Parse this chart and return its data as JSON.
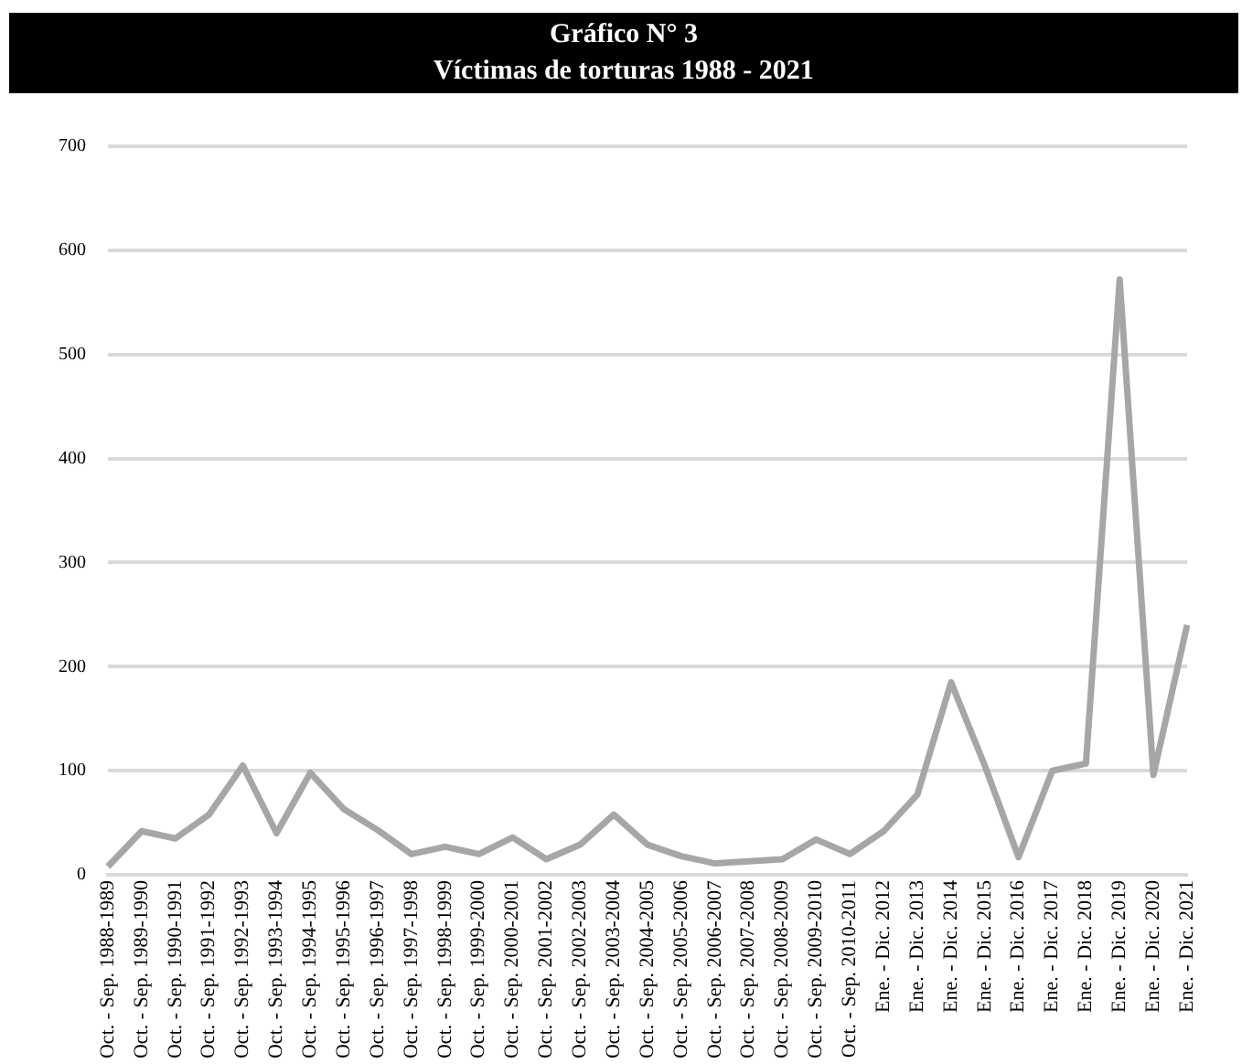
{
  "chart_data": {
    "type": "line",
    "title": "Gráfico N° 3",
    "subtitle": "Víctimas de torturas 1988 - 2021",
    "categories": [
      "Oct. - Sep. 1988-1989",
      "Oct. - Sep. 1989-1990",
      "Oct. - Sep. 1990-1991",
      "Oct. - Sep. 1991-1992",
      "Oct. - Sep. 1992-1993",
      "Oct. - Sep. 1993-1994",
      "Oct. - Sep. 1994-1995",
      "Oct. - Sep. 1995-1996",
      "Oct. - Sep. 1996-1997",
      "Oct. - Sep. 1997-1998",
      "Oct. - Sep. 1998-1999",
      "Oct. - Sep. 1999-2000",
      "Oct. - Sep. 2000-2001",
      "Oct. - Sep. 2001-2002",
      "Oct. - Sep. 2002-2003",
      "Oct. - Sep. 2003-2004",
      "Oct. - Sep. 2004-2005",
      "Oct. - Sep. 2005-2006",
      "Oct. - Sep. 2006-2007",
      "Oct. - Sep. 2007-2008",
      "Oct. - Sep. 2008-2009",
      "Oct. - Sep. 2009-2010",
      "Oct. - Sep. 2010-2011",
      "Ene. - Dic. 2012",
      "Ene. - Dic. 2013",
      "Ene. - Dic. 2014",
      "Ene. - Dic. 2015",
      "Ene. - Dic. 2016",
      "Ene. - Dic. 2017",
      "Ene. - Dic. 2018",
      "Ene. - Dic. 2019",
      "Ene. - Dic. 2020",
      "Ene. - Dic. 2021"
    ],
    "series": [
      {
        "color": "#a6a6a6",
        "values": [
          8,
          42,
          35,
          58,
          105,
          40,
          98,
          63,
          43,
          20,
          27,
          20,
          36,
          15,
          29,
          58,
          29,
          18,
          11,
          13,
          15,
          34,
          20,
          42,
          77,
          185,
          105,
          17,
          100,
          107,
          572,
          96,
          240
        ]
      }
    ],
    "ylim": [
      0,
      700
    ],
    "yticks": [
      0,
      100,
      200,
      300,
      400,
      500,
      600,
      700
    ],
    "grid": "y",
    "legend": false,
    "marker": "none",
    "line_style": "solid"
  }
}
